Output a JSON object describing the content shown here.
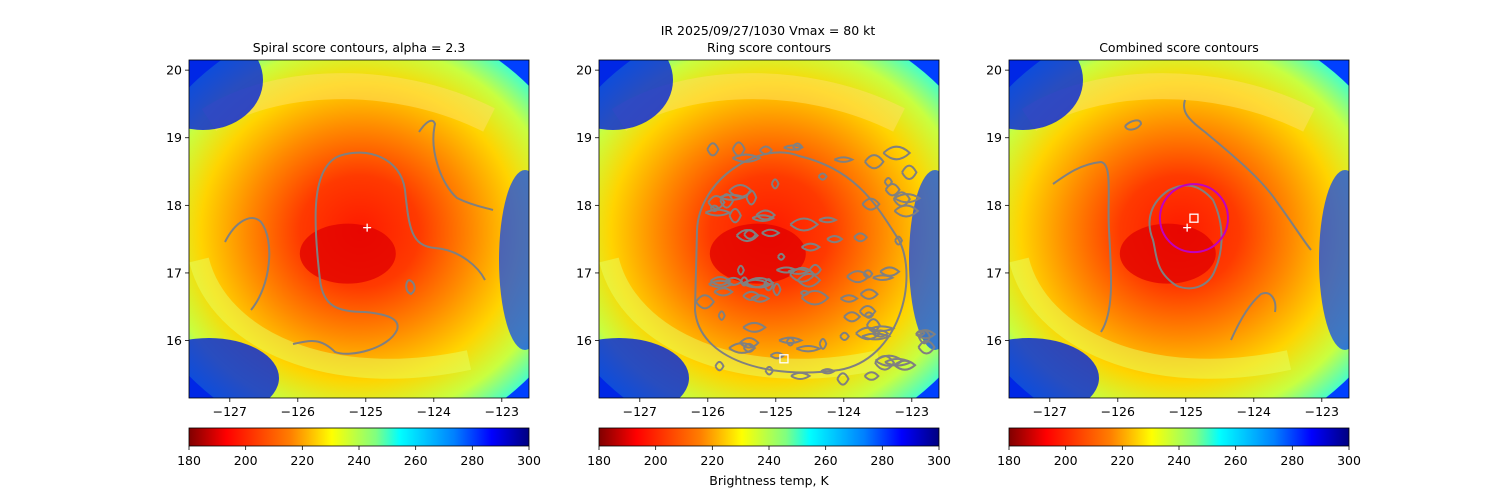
{
  "suptitle_line1": "IR  2025/09/27/1030    Vmax = 80 kt",
  "colorbar_label": "Brightness temp, K",
  "colors": {
    "contour": "#808080",
    "marker": "#ffffff",
    "circle": "#c000c0",
    "colormap": [
      "#800000",
      "#ff0000",
      "#ff8000",
      "#ffff00",
      "#80ff80",
      "#00ffff",
      "#0080ff",
      "#0000ff",
      "#000080"
    ]
  },
  "chart_data": [
    {
      "type": "heatmap",
      "title": "Spiral score contours, alpha =  2.3",
      "xlim": [
        -127.6,
        -122.6
      ],
      "ylim": [
        15.15,
        20.15
      ],
      "x_ticks": [
        -127,
        -126,
        -125,
        -124,
        -123
      ],
      "y_ticks": [
        16,
        17,
        18,
        19,
        20
      ],
      "x_tick_labels": [
        "−127",
        "−126",
        "−125",
        "−124",
        "−123"
      ],
      "y_tick_labels": [
        "16",
        "17",
        "18",
        "19",
        "20"
      ],
      "colorbar": {
        "vmin": 180,
        "vmax": 300,
        "ticks": [
          180,
          200,
          220,
          240,
          260,
          280,
          300
        ],
        "tick_labels": [
          "180",
          "200",
          "220",
          "240",
          "260",
          "280",
          "300"
        ],
        "colormap": "jet_r"
      },
      "center": {
        "lon": -125.0,
        "lat": 17.67
      },
      "markers": [
        {
          "kind": "plus",
          "lon": -124.98,
          "lat": 17.67
        }
      ]
    },
    {
      "type": "heatmap",
      "title": "Ring score contours",
      "xlim": [
        -127.6,
        -122.6
      ],
      "ylim": [
        15.15,
        20.15
      ],
      "x_ticks": [
        -127,
        -126,
        -125,
        -124,
        -123
      ],
      "y_ticks": [
        16,
        17,
        18,
        19,
        20
      ],
      "x_tick_labels": [
        "−127",
        "−126",
        "−125",
        "−124",
        "−123"
      ],
      "y_tick_labels": [
        "16",
        "17",
        "18",
        "19",
        "20"
      ],
      "colorbar": {
        "vmin": 180,
        "vmax": 300,
        "ticks": [
          180,
          200,
          220,
          240,
          260,
          280,
          300
        ],
        "tick_labels": [
          "180",
          "200",
          "220",
          "240",
          "260",
          "280",
          "300"
        ],
        "colormap": "jet_r"
      },
      "center": {
        "lon": -125.0,
        "lat": 17.67
      },
      "markers": [
        {
          "kind": "square",
          "lon": -124.88,
          "lat": 15.73
        }
      ]
    },
    {
      "type": "heatmap",
      "title": "Combined score contours",
      "xlim": [
        -127.6,
        -122.6
      ],
      "ylim": [
        15.15,
        20.15
      ],
      "x_ticks": [
        -127,
        -126,
        -125,
        -124,
        -123
      ],
      "y_ticks": [
        16,
        17,
        18,
        19,
        20
      ],
      "x_tick_labels": [
        "−127",
        "−126",
        "−125",
        "−124",
        "−123"
      ],
      "y_tick_labels": [
        "16",
        "17",
        "18",
        "19",
        "20"
      ],
      "colorbar": {
        "vmin": 180,
        "vmax": 300,
        "ticks": [
          180,
          200,
          220,
          240,
          260,
          280,
          300
        ],
        "tick_labels": [
          "180",
          "200",
          "220",
          "240",
          "260",
          "280",
          "300"
        ],
        "colormap": "jet_r"
      },
      "center": {
        "lon": -125.0,
        "lat": 17.67
      },
      "markers": [
        {
          "kind": "plus",
          "lon": -124.98,
          "lat": 17.67
        },
        {
          "kind": "square",
          "lon": -124.88,
          "lat": 17.81
        },
        {
          "kind": "circle",
          "lon": -124.88,
          "lat": 17.81,
          "radius_deg": 0.5
        }
      ]
    }
  ]
}
